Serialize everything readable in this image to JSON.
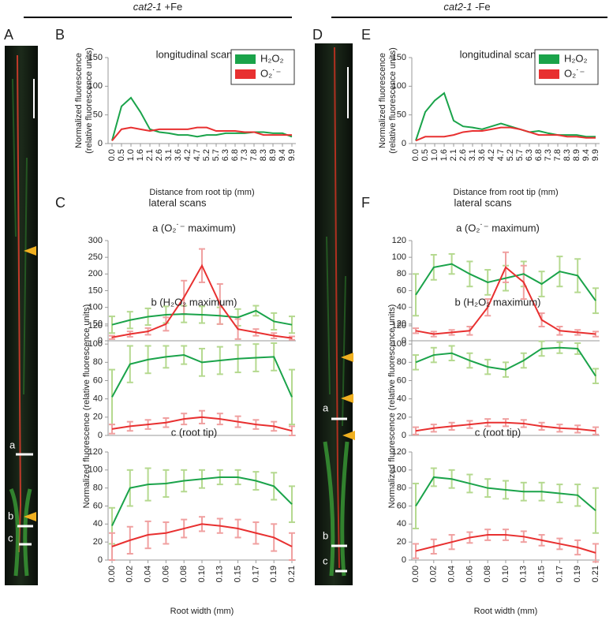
{
  "figure": {
    "left_title": {
      "gene": "cat2-1",
      "condition": "+Fe"
    },
    "right_title": {
      "gene": "cat2-1",
      "condition": "-Fe"
    },
    "panel_labels": [
      "A",
      "B",
      "C",
      "D",
      "E",
      "F"
    ],
    "lateral_scans_labels": [
      "lateral scans",
      "lateral scans"
    ],
    "lateral_y_labels": [
      "Normalized fluorescence  (relative fluorescence units)",
      "Normalized fluorescence  (relative fluorescence units)"
    ],
    "root_labels_left": [
      "a",
      "b",
      "c"
    ],
    "root_labels_right": [
      "a",
      "b",
      "c"
    ]
  },
  "chart_data": [
    {
      "type": "line",
      "title": "longitudinal scan",
      "legend": "top-right",
      "y_label": [
        "Normalized fluorescence",
        "(relative fluorescence units)"
      ],
      "x_label": "Distance from root tip (mm)",
      "categories": [
        "0.0",
        "0.5",
        "1.0",
        "1.6",
        "2.1",
        "2.6",
        "3.1",
        "3.6",
        "4.2",
        "4.7",
        "5.2",
        "5.7",
        "6.3",
        "6.8",
        "7.3",
        "7.8",
        "8.3",
        "8.9",
        "9.4",
        "9.9"
      ],
      "ylim": [
        0,
        150
      ],
      "yticks": [
        0,
        50,
        100,
        150
      ],
      "series": [
        {
          "name": "H₂O₂",
          "color": "#1aa34a",
          "values": [
            5,
            65,
            80,
            55,
            25,
            20,
            18,
            15,
            15,
            12,
            15,
            15,
            18,
            18,
            18,
            20,
            20,
            18,
            18,
            12
          ]
        },
        {
          "name": "O₂˙⁻",
          "color": "#e83030",
          "values": [
            5,
            25,
            28,
            25,
            22,
            25,
            25,
            25,
            25,
            28,
            28,
            22,
            22,
            22,
            20,
            20,
            15,
            15,
            15,
            15
          ]
        }
      ]
    },
    {
      "type": "line",
      "title": "a (O₂˙⁻ maximum)",
      "ylim": [
        0,
        300
      ],
      "yticks": [
        0,
        50,
        100,
        150,
        200,
        250,
        300
      ],
      "series": [
        {
          "color": "#1aa34a",
          "error_color": "#b5d98f",
          "values": [
            48,
            62,
            72,
            78,
            80,
            78,
            75,
            70,
            90,
            58,
            48
          ],
          "errors": [
            25,
            25,
            25,
            25,
            25,
            25,
            25,
            25,
            15,
            25,
            25
          ]
        },
        {
          "color": "#e83030",
          "error_color": "#f0a0a0",
          "values": [
            10,
            20,
            28,
            50,
            130,
            225,
            110,
            35,
            25,
            15,
            8
          ],
          "errors": [
            5,
            8,
            10,
            20,
            50,
            50,
            60,
            30,
            10,
            8,
            5
          ]
        }
      ]
    },
    {
      "type": "line",
      "title": "b (H₂O₂ maximum)",
      "ylim": [
        0,
        120
      ],
      "yticks": [
        0,
        20,
        40,
        60,
        80,
        100,
        120
      ],
      "series": [
        {
          "color": "#1aa34a",
          "error_color": "#b5d98f",
          "values": [
            42,
            78,
            83,
            86,
            88,
            80,
            82,
            84,
            85,
            86,
            42
          ],
          "errors": [
            30,
            20,
            15,
            12,
            10,
            15,
            15,
            15,
            15,
            15,
            30
          ]
        },
        {
          "color": "#e83030",
          "error_color": "#f0a0a0",
          "values": [
            7,
            10,
            12,
            14,
            18,
            20,
            18,
            15,
            12,
            10,
            5
          ],
          "errors": [
            5,
            5,
            5,
            5,
            6,
            7,
            6,
            6,
            5,
            5,
            5
          ]
        }
      ]
    },
    {
      "type": "line",
      "title": "c (root tip)",
      "ylim": [
        0,
        120
      ],
      "yticks": [
        0,
        20,
        40,
        60,
        80,
        100,
        120
      ],
      "x_label": "Root width (mm)",
      "categories": [
        "0.00",
        "0.02",
        "0.04",
        "0.06",
        "0.08",
        "0.10",
        "0.13",
        "0.15",
        "0.17",
        "0.19",
        "0.21"
      ],
      "series": [
        {
          "color": "#1aa34a",
          "error_color": "#b5d98f",
          "values": [
            38,
            80,
            84,
            85,
            88,
            90,
            92,
            92,
            88,
            82,
            62
          ],
          "errors": [
            20,
            20,
            18,
            15,
            12,
            10,
            8,
            8,
            10,
            15,
            20
          ]
        },
        {
          "color": "#e83030",
          "error_color": "#f0a0a0",
          "values": [
            15,
            22,
            28,
            30,
            35,
            40,
            38,
            35,
            30,
            25,
            15
          ],
          "errors": [
            15,
            15,
            15,
            12,
            10,
            8,
            8,
            10,
            12,
            15,
            15
          ]
        }
      ]
    },
    {
      "type": "line",
      "title": "longitudinal scan",
      "legend": "top-right",
      "y_label": [
        "Normalized fluorescence",
        "(relative fluorescence units)"
      ],
      "x_label": "Distance from root tip (mm)",
      "categories": [
        "0.0",
        "0.5",
        "1.0",
        "1.6",
        "2.1",
        "2.6",
        "3.1",
        "3.6",
        "4.2",
        "4.7",
        "5.2",
        "5.7",
        "6.3",
        "6.8",
        "7.3",
        "7.8",
        "8.3",
        "8.9",
        "9.4",
        "9.9"
      ],
      "ylim": [
        0,
        150
      ],
      "yticks": [
        0,
        50,
        100,
        150
      ],
      "series": [
        {
          "name": "H₂O₂",
          "color": "#1aa34a",
          "values": [
            5,
            55,
            75,
            88,
            40,
            30,
            28,
            25,
            30,
            35,
            30,
            25,
            20,
            22,
            18,
            15,
            15,
            15,
            12,
            12
          ]
        },
        {
          "name": "O₂˙⁻",
          "color": "#e83030",
          "values": [
            5,
            12,
            12,
            12,
            15,
            20,
            22,
            22,
            25,
            28,
            28,
            25,
            20,
            15,
            15,
            15,
            12,
            12,
            10,
            10
          ]
        }
      ]
    },
    {
      "type": "line",
      "title": "a (O₂˙⁻ maximum)",
      "ylim": [
        0,
        120
      ],
      "yticks": [
        0,
        20,
        40,
        60,
        80,
        100,
        120
      ],
      "series": [
        {
          "color": "#1aa34a",
          "error_color": "#b5d98f",
          "values": [
            55,
            88,
            92,
            80,
            70,
            75,
            80,
            68,
            83,
            78,
            48
          ],
          "errors": [
            25,
            15,
            12,
            15,
            15,
            15,
            15,
            15,
            18,
            20,
            15
          ]
        },
        {
          "color": "#e83030",
          "error_color": "#f0a0a0",
          "values": [
            12,
            8,
            10,
            12,
            40,
            88,
            70,
            25,
            12,
            10,
            8
          ],
          "errors": [
            3,
            3,
            3,
            5,
            10,
            18,
            20,
            8,
            5,
            3,
            3
          ]
        }
      ]
    },
    {
      "type": "line",
      "title": "b (H₂O₂ maximum)",
      "ylim": [
        0,
        120
      ],
      "yticks": [
        0,
        20,
        40,
        60,
        80,
        100,
        120
      ],
      "series": [
        {
          "color": "#1aa34a",
          "error_color": "#b5d98f",
          "values": [
            80,
            88,
            90,
            82,
            75,
            72,
            82,
            95,
            96,
            95,
            65
          ],
          "errors": [
            8,
            8,
            8,
            8,
            8,
            8,
            8,
            8,
            6,
            6,
            8
          ]
        },
        {
          "color": "#e83030",
          "error_color": "#f0a0a0",
          "values": [
            5,
            8,
            10,
            12,
            14,
            14,
            13,
            10,
            8,
            7,
            5
          ],
          "errors": [
            4,
            4,
            4,
            4,
            4,
            4,
            4,
            4,
            4,
            4,
            4
          ]
        }
      ]
    },
    {
      "type": "line",
      "title": "c (root tip)",
      "ylim": [
        0,
        120
      ],
      "yticks": [
        0,
        20,
        40,
        60,
        80,
        100,
        120
      ],
      "x_label": "Root width (mm)",
      "categories": [
        "0.00",
        "0.02",
        "0.04",
        "0.06",
        "0.08",
        "0.10",
        "0.13",
        "0.15",
        "0.17",
        "0.19",
        "0.21"
      ],
      "series": [
        {
          "color": "#1aa34a",
          "error_color": "#b5d98f",
          "values": [
            60,
            92,
            90,
            85,
            80,
            78,
            76,
            76,
            74,
            72,
            55
          ],
          "errors": [
            25,
            10,
            10,
            10,
            10,
            10,
            10,
            10,
            10,
            12,
            25
          ]
        },
        {
          "color": "#e83030",
          "error_color": "#f0a0a0",
          "values": [
            10,
            15,
            20,
            25,
            28,
            28,
            26,
            22,
            18,
            14,
            8
          ],
          "errors": [
            8,
            8,
            8,
            6,
            6,
            6,
            6,
            6,
            6,
            8,
            10
          ]
        }
      ]
    }
  ]
}
